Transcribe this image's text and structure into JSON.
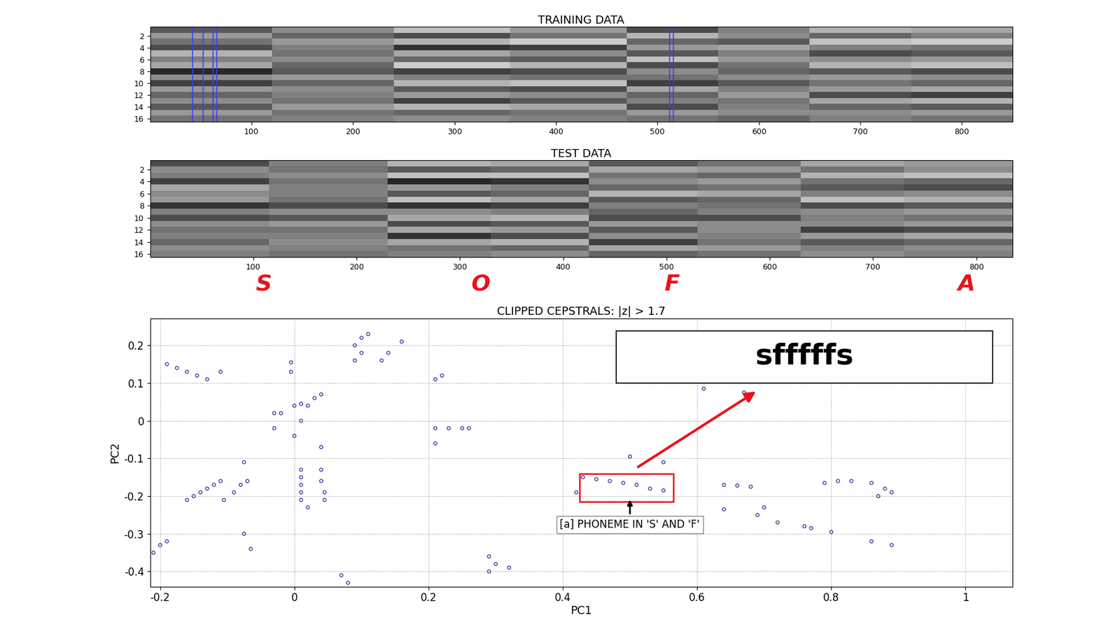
{
  "chart_data": [
    {
      "type": "heatmap",
      "title": "TRAINING DATA",
      "x_edges": [
        0,
        120,
        240,
        355,
        470,
        560,
        650,
        750,
        850
      ],
      "y_edges": [
        0.5,
        1.5,
        2.5,
        3.5,
        4.5,
        5.5,
        6.5,
        7.5,
        8.5,
        9.5,
        10.5,
        11.5,
        12.5,
        13.5,
        14.5,
        15.5,
        16.5
      ],
      "xlim": [
        0,
        850
      ],
      "ylim": [
        16.5,
        0.5
      ],
      "xticks": [
        100,
        200,
        300,
        400,
        500,
        600,
        700,
        800
      ],
      "yticks": [
        2,
        4,
        6,
        8,
        10,
        12,
        14,
        16
      ],
      "color_range": [
        0,
        1
      ],
      "highlight_x": [
        42,
        52,
        62,
        66,
        512,
        516
      ],
      "highlight_color": "#3a3aff",
      "cells": [
        [
          0.35,
          0.55,
          0.75,
          0.6,
          0.3,
          0.5,
          0.7,
          0.65
        ],
        [
          0.6,
          0.4,
          0.3,
          0.45,
          0.7,
          0.55,
          0.4,
          0.5
        ],
        [
          0.45,
          0.6,
          0.7,
          0.8,
          0.4,
          0.35,
          0.75,
          0.8
        ],
        [
          0.3,
          0.5,
          0.2,
          0.25,
          0.6,
          0.65,
          0.5,
          0.45
        ],
        [
          0.7,
          0.45,
          0.65,
          0.55,
          0.35,
          0.5,
          0.3,
          0.35
        ],
        [
          0.5,
          0.55,
          0.4,
          0.35,
          0.75,
          0.6,
          0.55,
          0.6
        ],
        [
          0.65,
          0.4,
          0.8,
          0.7,
          0.3,
          0.45,
          0.7,
          0.75
        ],
        [
          0.15,
          0.35,
          0.25,
          0.3,
          0.55,
          0.4,
          0.35,
          0.3
        ],
        [
          0.55,
          0.6,
          0.5,
          0.45,
          0.45,
          0.55,
          0.6,
          0.55
        ],
        [
          0.25,
          0.4,
          0.7,
          0.75,
          0.25,
          0.35,
          0.45,
          0.4
        ],
        [
          0.6,
          0.55,
          0.35,
          0.3,
          0.65,
          0.5,
          0.6,
          0.65
        ],
        [
          0.4,
          0.5,
          0.6,
          0.55,
          0.4,
          0.6,
          0.3,
          0.25
        ],
        [
          0.55,
          0.45,
          0.25,
          0.35,
          0.5,
          0.45,
          0.65,
          0.7
        ],
        [
          0.35,
          0.6,
          0.7,
          0.65,
          0.3,
          0.5,
          0.4,
          0.35
        ],
        [
          0.6,
          0.45,
          0.4,
          0.45,
          0.6,
          0.55,
          0.55,
          0.6
        ],
        [
          0.45,
          0.5,
          0.55,
          0.5,
          0.45,
          0.4,
          0.5,
          0.45
        ]
      ]
    },
    {
      "type": "heatmap",
      "title": "TEST DATA",
      "x_edges": [
        0,
        115,
        230,
        330,
        425,
        530,
        630,
        730,
        835
      ],
      "y_edges": [
        0.5,
        1.5,
        2.5,
        3.5,
        4.5,
        5.5,
        6.5,
        7.5,
        8.5,
        9.5,
        10.5,
        11.5,
        12.5,
        13.5,
        14.5,
        15.5,
        16.5
      ],
      "xlim": [
        0,
        835
      ],
      "ylim": [
        16.5,
        0.5
      ],
      "xticks": [
        100,
        200,
        300,
        400,
        500,
        600,
        700,
        800
      ],
      "yticks": [
        2,
        4,
        6,
        8,
        10,
        12,
        14,
        16
      ],
      "color_range": [
        0,
        1
      ],
      "segment_labels": [
        "S",
        "O",
        "F",
        "A"
      ],
      "segment_x": [
        110,
        320,
        505,
        790
      ],
      "segment_color": "#e8141c",
      "cells": [
        [
          0.3,
          0.5,
          0.7,
          0.65,
          0.35,
          0.45,
          0.65,
          0.6
        ],
        [
          0.55,
          0.45,
          0.35,
          0.4,
          0.65,
          0.6,
          0.45,
          0.55
        ],
        [
          0.5,
          0.55,
          0.75,
          0.75,
          0.45,
          0.4,
          0.7,
          0.75
        ],
        [
          0.25,
          0.45,
          0.15,
          0.2,
          0.55,
          0.6,
          0.45,
          0.4
        ],
        [
          0.65,
          0.5,
          0.6,
          0.5,
          0.4,
          0.45,
          0.35,
          0.3
        ],
        [
          0.55,
          0.5,
          0.35,
          0.4,
          0.7,
          0.65,
          0.5,
          0.55
        ],
        [
          0.6,
          0.45,
          0.75,
          0.65,
          0.35,
          0.4,
          0.75,
          0.7
        ],
        [
          0.2,
          0.3,
          0.2,
          0.25,
          0.5,
          0.45,
          0.3,
          0.35
        ],
        [
          0.5,
          0.55,
          0.55,
          0.5,
          0.4,
          0.5,
          0.55,
          0.6
        ],
        [
          0.3,
          0.35,
          0.65,
          0.7,
          0.3,
          0.3,
          0.5,
          0.45
        ],
        [
          0.55,
          0.6,
          0.3,
          0.35,
          0.6,
          0.55,
          0.55,
          0.6
        ],
        [
          0.45,
          0.45,
          0.65,
          0.6,
          0.35,
          0.55,
          0.25,
          0.3
        ],
        [
          0.5,
          0.5,
          0.2,
          0.3,
          0.55,
          0.5,
          0.6,
          0.65
        ],
        [
          0.4,
          0.55,
          0.65,
          0.7,
          0.25,
          0.45,
          0.35,
          0.4
        ],
        [
          0.55,
          0.5,
          0.45,
          0.4,
          0.65,
          0.6,
          0.5,
          0.55
        ],
        [
          0.5,
          0.45,
          0.5,
          0.55,
          0.4,
          0.45,
          0.55,
          0.5
        ]
      ]
    },
    {
      "type": "scatter",
      "title": "CLIPPED CEPSTRALS: |z| > 1.7",
      "x_label": "PC1",
      "y_label": "PC2",
      "xlim": [
        -0.215,
        1.07
      ],
      "ylim": [
        -0.44,
        0.272
      ],
      "xticks": [
        -0.2,
        0,
        0.2,
        0.4,
        0.6,
        0.8,
        1
      ],
      "yticks": [
        -0.4,
        -0.3,
        -0.2,
        -0.1,
        0,
        0.1,
        0.2
      ],
      "grid": true,
      "color": "#1a1a8c",
      "marker": "o",
      "x": [
        -0.19,
        -0.175,
        -0.16,
        -0.145,
        -0.13,
        -0.11,
        -0.005,
        -0.005,
        -0.03,
        -0.02,
        0.0,
        0.01,
        0.02,
        0.03,
        0.04,
        0.01,
        -0.03,
        0.0,
        0.04,
        0.09,
        0.1,
        0.09,
        0.1,
        0.11,
        0.13,
        0.14,
        0.16,
        0.21,
        0.22,
        0.21,
        0.23,
        0.25,
        0.26,
        0.21,
        -0.075,
        -0.16,
        -0.15,
        -0.14,
        -0.13,
        -0.12,
        -0.11,
        -0.09,
        -0.08,
        -0.07,
        -0.105,
        0.01,
        0.01,
        0.01,
        0.01,
        0.01,
        0.02,
        0.04,
        0.04,
        0.045,
        0.045,
        -0.075,
        -0.065,
        -0.2,
        -0.19,
        -0.21,
        0.07,
        0.08,
        0.29,
        0.3,
        0.29,
        0.32,
        0.42,
        0.43,
        0.45,
        0.47,
        0.49,
        0.51,
        0.53,
        0.55,
        0.5,
        0.55,
        0.61,
        0.67,
        0.64,
        0.66,
        0.68,
        0.64,
        0.69,
        0.7,
        0.72,
        0.76,
        0.77,
        0.8,
        0.79,
        0.81,
        0.83,
        0.86,
        0.88,
        0.89,
        0.87,
        0.86,
        0.89
      ],
      "y": [
        0.15,
        0.14,
        0.13,
        0.12,
        0.11,
        0.13,
        0.155,
        0.13,
        0.02,
        0.02,
        0.04,
        0.045,
        0.04,
        0.06,
        0.07,
        0.0,
        -0.02,
        -0.04,
        -0.07,
        0.16,
        0.18,
        0.2,
        0.22,
        0.23,
        0.16,
        0.18,
        0.21,
        0.11,
        0.12,
        -0.02,
        -0.02,
        -0.02,
        -0.02,
        -0.06,
        -0.11,
        -0.21,
        -0.2,
        -0.19,
        -0.18,
        -0.17,
        -0.16,
        -0.19,
        -0.17,
        -0.16,
        -0.21,
        -0.13,
        -0.15,
        -0.17,
        -0.19,
        -0.21,
        -0.23,
        -0.13,
        -0.16,
        -0.19,
        -0.21,
        -0.3,
        -0.34,
        -0.33,
        -0.32,
        -0.35,
        -0.41,
        -0.43,
        -0.36,
        -0.38,
        -0.4,
        -0.39,
        -0.19,
        -0.15,
        -0.155,
        -0.16,
        -0.165,
        -0.17,
        -0.18,
        -0.185,
        -0.095,
        -0.11,
        0.085,
        0.075,
        -0.17,
        -0.172,
        -0.175,
        -0.235,
        -0.25,
        -0.23,
        -0.27,
        -0.28,
        -0.285,
        -0.295,
        -0.165,
        -0.16,
        -0.16,
        -0.165,
        -0.18,
        -0.19,
        -0.2,
        -0.32,
        -0.33
      ],
      "annotation": "[a] PHONEME IN 'S' AND 'F'",
      "inset_text": "sfffffs",
      "highlight_color": "#e8141c"
    }
  ]
}
